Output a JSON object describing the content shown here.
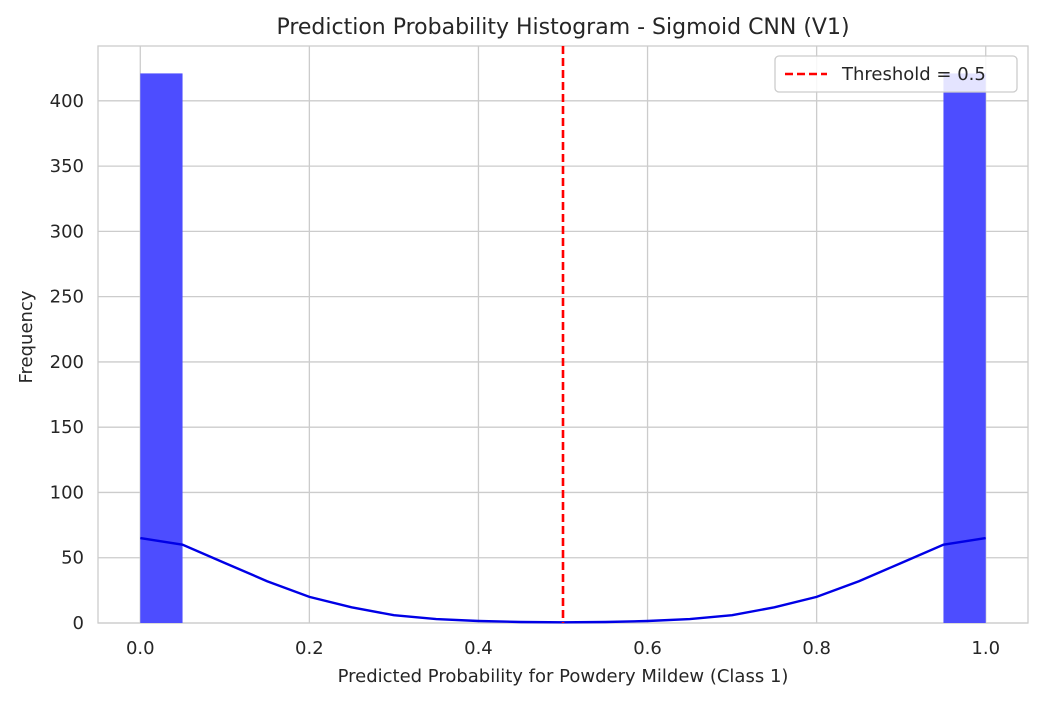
{
  "chart_data": {
    "type": "bar",
    "title": "Prediction Probability Histogram - Sigmoid CNN (V1)",
    "xlabel": "Predicted Probability for Powdery Mildew (Class 1)",
    "ylabel": "Frequency",
    "xlim": [
      -0.05,
      1.05
    ],
    "ylim": [
      0,
      442
    ],
    "x_ticks": [
      0.0,
      0.2,
      0.4,
      0.6,
      0.8,
      1.0
    ],
    "x_tick_labels": [
      "0.0",
      "0.2",
      "0.4",
      "0.6",
      "0.8",
      "1.0"
    ],
    "y_ticks": [
      0,
      50,
      100,
      150,
      200,
      250,
      300,
      350,
      400
    ],
    "y_tick_labels": [
      "0",
      "50",
      "100",
      "150",
      "200",
      "250",
      "300",
      "350",
      "400"
    ],
    "grid": true,
    "bin_width": 0.05,
    "bins": [
      {
        "start": 0.0,
        "count": 421
      },
      {
        "start": 0.95,
        "count": 421
      }
    ],
    "bar_color": "#4d4dff",
    "kde": {
      "color": "#0000e6",
      "x": [
        0.0,
        0.05,
        0.1,
        0.15,
        0.2,
        0.25,
        0.3,
        0.35,
        0.4,
        0.45,
        0.5,
        0.55,
        0.6,
        0.65,
        0.7,
        0.75,
        0.8,
        0.85,
        0.9,
        0.95,
        1.0
      ],
      "y": [
        65,
        60,
        46,
        32,
        20,
        12,
        6,
        3,
        1.5,
        0.8,
        0.5,
        0.8,
        1.5,
        3,
        6,
        12,
        20,
        32,
        46,
        60,
        65
      ]
    },
    "threshold": {
      "x": 0.5,
      "color": "#ff0000",
      "label": "Threshold = 0.5"
    },
    "legend": {
      "position": "top-right",
      "entries": [
        "Threshold = 0.5"
      ]
    }
  }
}
